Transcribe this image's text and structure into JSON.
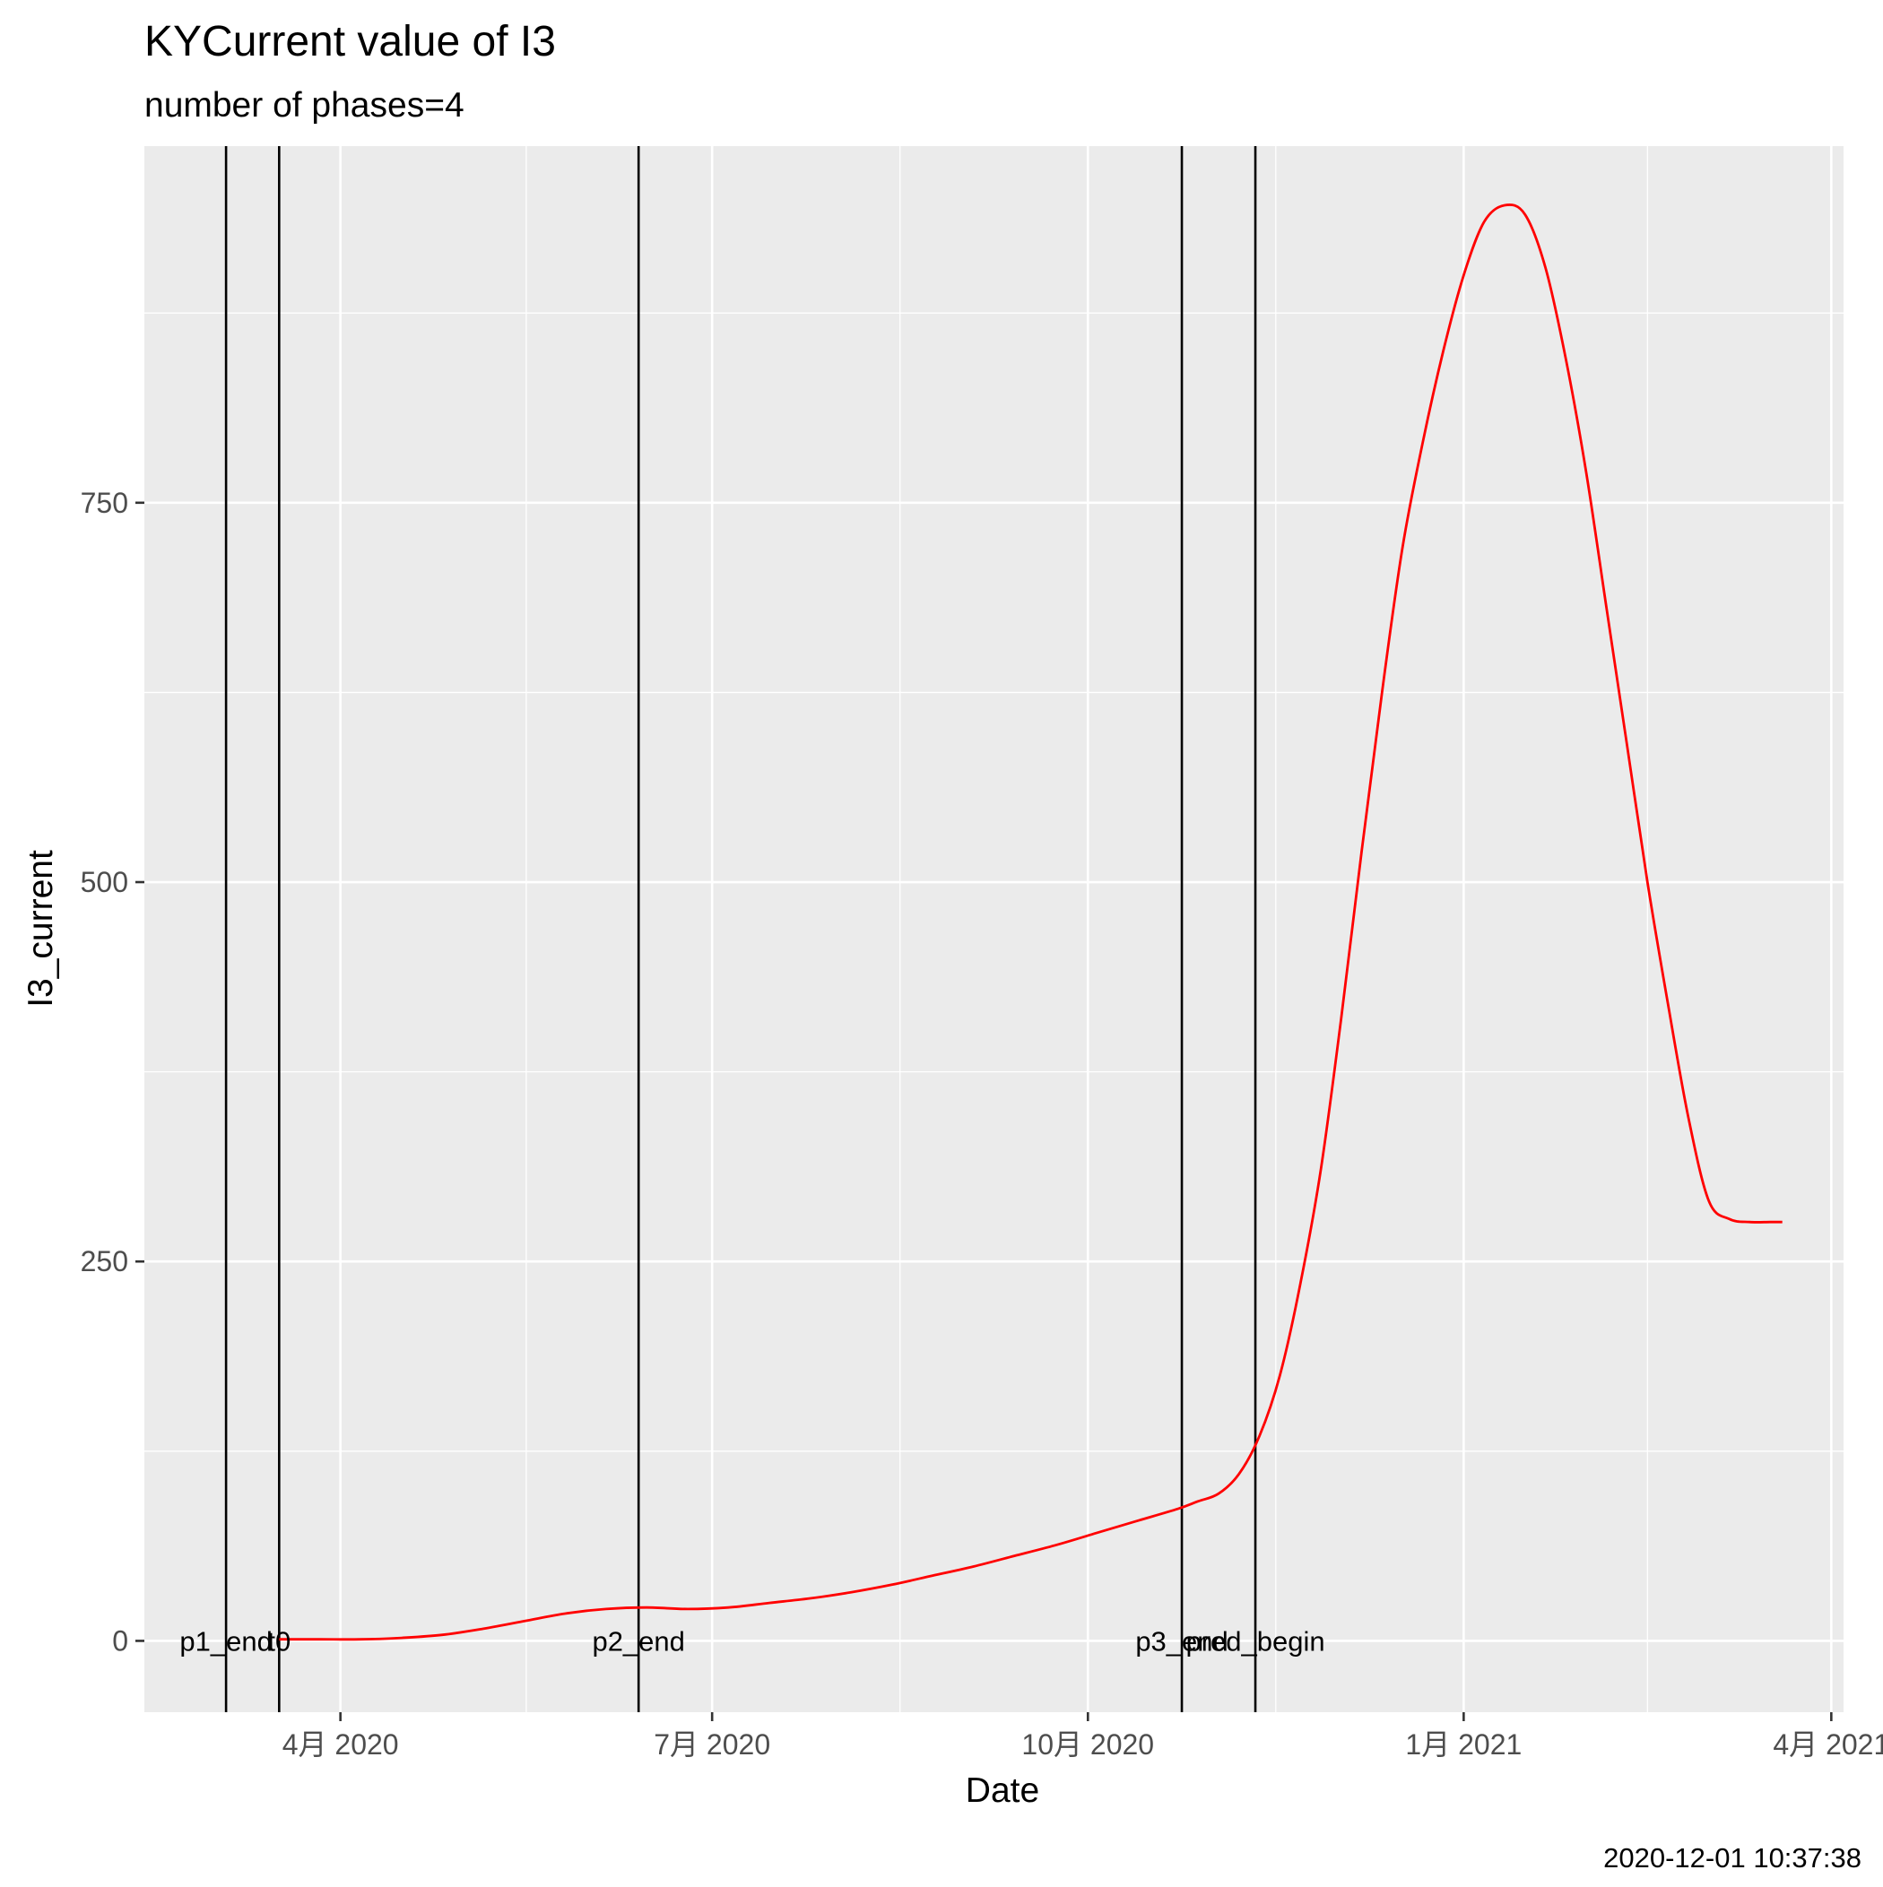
{
  "chart_data": {
    "type": "line",
    "title": "KYCurrent value of I3",
    "subtitle": "number of phases=4",
    "xlabel": "Date",
    "ylabel": "I3_current",
    "caption": "2020-12-01 10:37:38",
    "x_ticks": [
      {
        "date": "2020-04-01",
        "label": "4月 2020"
      },
      {
        "date": "2020-07-01",
        "label": "7月 2020"
      },
      {
        "date": "2020-10-01",
        "label": "10月 2020"
      },
      {
        "date": "2021-01-01",
        "label": "1月 2021"
      },
      {
        "date": "2021-04-01",
        "label": "4月 2021"
      }
    ],
    "y_ticks": [
      0,
      250,
      500,
      750
    ],
    "xlim": [
      "2020-02-13",
      "2021-04-04"
    ],
    "ylim": [
      -47,
      985
    ],
    "grid": true,
    "vlines": [
      {
        "date": "2020-03-04",
        "label": "p1_end"
      },
      {
        "date": "2020-03-17",
        "label": "t0"
      },
      {
        "date": "2020-06-13",
        "label": "p2_end"
      },
      {
        "date": "2020-10-24",
        "label": "p3_end"
      },
      {
        "date": "2020-11-11",
        "label": "pred_begin"
      }
    ],
    "series": [
      {
        "color": "#ff0000",
        "x": [
          "2020-03-17",
          "2020-03-27",
          "2020-04-06",
          "2020-04-16",
          "2020-04-26",
          "2020-05-06",
          "2020-05-16",
          "2020-05-26",
          "2020-06-05",
          "2020-06-15",
          "2020-06-25",
          "2020-07-05",
          "2020-07-15",
          "2020-07-25",
          "2020-08-04",
          "2020-08-14",
          "2020-08-24",
          "2020-09-03",
          "2020-09-13",
          "2020-09-23",
          "2020-10-03",
          "2020-10-13",
          "2020-10-23",
          "2020-10-28",
          "2020-11-02",
          "2020-11-07",
          "2020-11-12",
          "2020-11-17",
          "2020-11-22",
          "2020-11-27",
          "2020-12-02",
          "2020-12-07",
          "2020-12-12",
          "2020-12-17",
          "2020-12-22",
          "2020-12-27",
          "2021-01-01",
          "2021-01-06",
          "2021-01-11",
          "2021-01-16",
          "2021-01-21",
          "2021-01-26",
          "2021-01-31",
          "2021-02-05",
          "2021-02-10",
          "2021-02-15",
          "2021-02-20",
          "2021-02-25",
          "2021-03-02",
          "2021-03-07",
          "2021-03-12",
          "2021-03-17",
          "2021-03-20"
        ],
        "y": [
          1,
          1,
          1,
          2,
          4,
          8,
          13,
          18,
          21,
          22,
          21,
          22,
          25,
          28,
          32,
          37,
          43,
          49,
          56,
          63,
          71,
          79,
          87,
          92,
          97,
          110,
          135,
          175,
          235,
          310,
          410,
          520,
          625,
          720,
          790,
          850,
          900,
          935,
          946,
          940,
          905,
          845,
          770,
          680,
          590,
          500,
          420,
          345,
          290,
          278,
          276,
          276,
          276
        ]
      }
    ]
  }
}
